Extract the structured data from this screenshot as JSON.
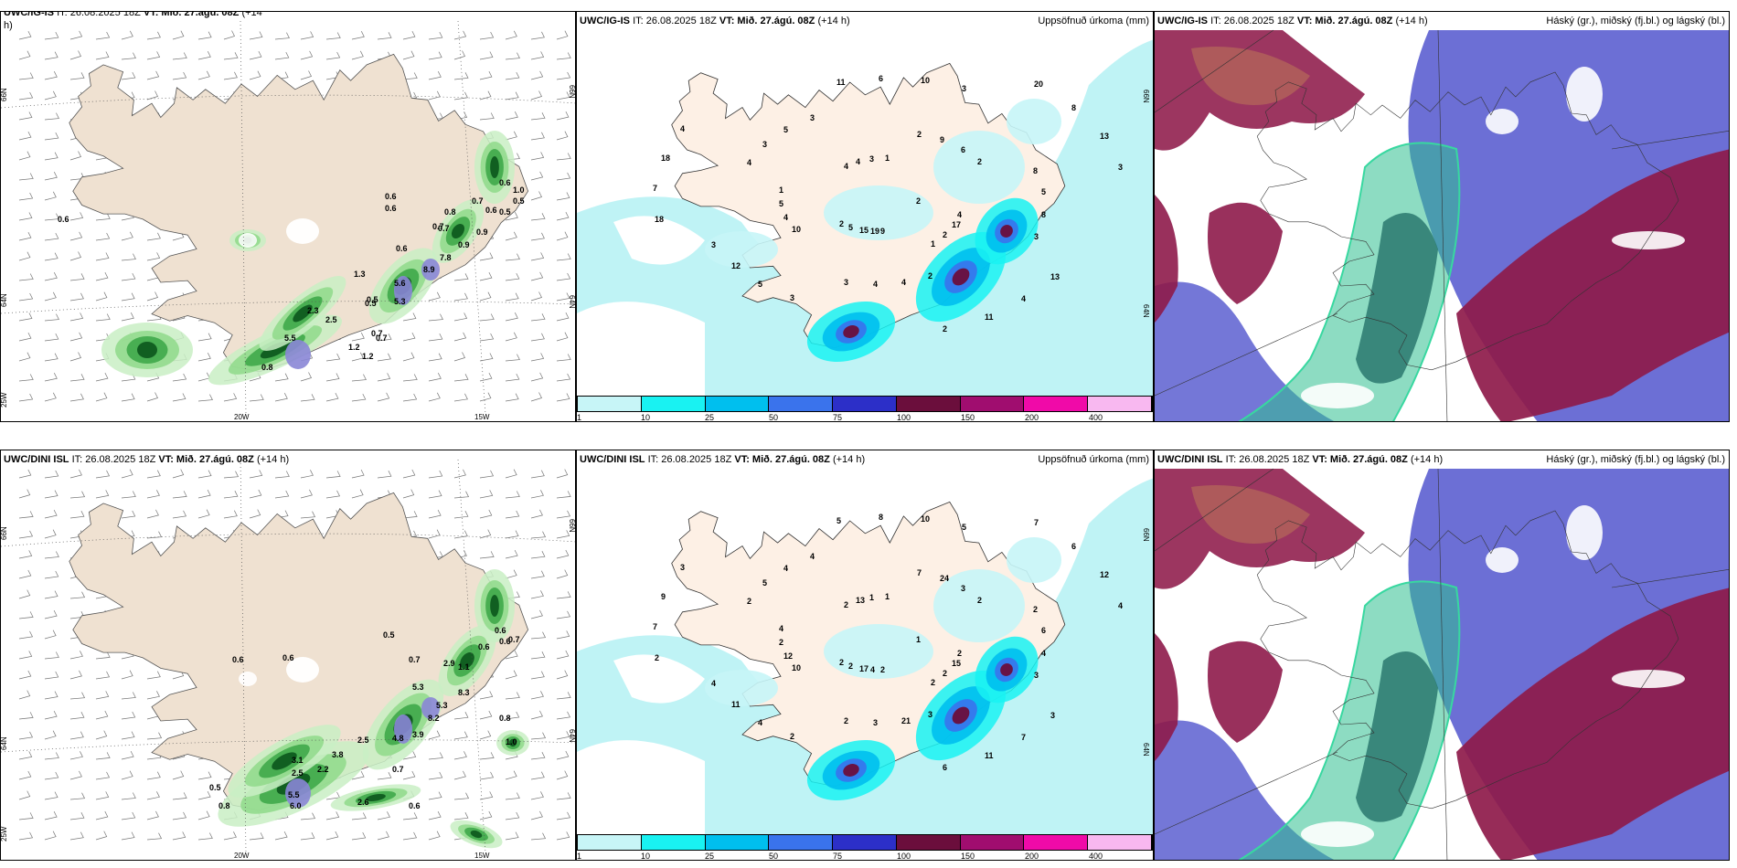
{
  "panels": {
    "top_left": {
      "model": "UWC/IG-IS",
      "it_label": "IT: 26.08.2025 18Z",
      "vt_label": "VT: Mið. 27.ágú. 08Z",
      "lead": "(+14",
      "lead_extra": "h)"
    },
    "top_mid": {
      "model": "UWC/IG-IS",
      "it_label": "IT: 26.08.2025 18Z",
      "vt_label": "VT: Mið. 27.ágú. 08Z",
      "lead": "(+14 h)",
      "right_title": "Uppsöfnuð úrkoma (mm)"
    },
    "top_right": {
      "model": "UWC/IG-IS",
      "it_label": "IT: 26.08.2025 18Z",
      "vt_label": "VT: Mið. 27.ágú. 08Z",
      "lead": "(+14 h)",
      "right_title": "Háský (gr.), miðský (fj.bl.) og lágský (bl.)"
    },
    "bottom_left": {
      "model": "UWC/DINI ISL",
      "it_label": "IT: 26.08.2025 18Z",
      "vt_label": "VT: Mið. 27.ágú. 08Z",
      "lead": "(+14 h)"
    },
    "bottom_mid": {
      "model": "UWC/DINI ISL",
      "it_label": "IT: 26.08.2025 18Z",
      "vt_label": "VT: Mið. 27.ágú. 08Z",
      "lead": "(+14 h)",
      "right_title": "Uppsöfnuð úrkoma (mm)"
    },
    "bottom_right": {
      "model": "UWC/DINI ISL",
      "it_label": "IT: 26.08.2025 18Z",
      "vt_label": "VT: Mið. 27.ágú. 08Z",
      "lead": "(+14 h)",
      "right_title": "Háský (gr.), miðský (fj.bl.) og lágský (bl.)"
    }
  },
  "axes": {
    "lat_66": "66N",
    "lat_64": "64N",
    "lon_25": "25W",
    "lon_20": "20W",
    "lon_15": "15W"
  },
  "colorbar": {
    "colors": [
      "#c7f5f7",
      "#19f2f2",
      "#00bfee",
      "#3a73ec",
      "#2c2fc8",
      "#6b0e3c",
      "#a00d6f",
      "#f00aa8",
      "#f8b8f0"
    ],
    "labels": [
      "1",
      "10",
      "25",
      "50",
      "75",
      "100",
      "150",
      "200",
      "400"
    ]
  },
  "top_left_values": [
    "0.6",
    "0.6",
    "0.6",
    "0.7",
    "0.6",
    "0.5",
    "0.7",
    "0.9",
    "0.8",
    "0.9",
    "1.3",
    "7.8",
    "8.9",
    "5.6",
    "5.3",
    "0.5",
    "0.7",
    "2.3",
    "2.5",
    "5.5",
    "0.8",
    "0.7",
    "1.2",
    "1.2",
    "0.6",
    "0.5",
    "1.0",
    "0.6",
    "0.7",
    "0.5"
  ],
  "bottom_left_values": [
    "0.6",
    "0.6",
    "0.5",
    "0.7",
    "2.9",
    "0.6",
    "0.6",
    "0.6",
    "0.7",
    "1.1",
    "5.3",
    "8.2",
    "5.3",
    "8.3",
    "4.8",
    "3.9",
    "2.5",
    "3.8",
    "3.1",
    "2.5",
    "2.2",
    "5.5",
    "6.0",
    "0.5",
    "0.8",
    "0.7",
    "2.6",
    "0.6",
    "0.8",
    "1.0"
  ],
  "top_mid_values": [
    "2",
    "2",
    "1",
    "1",
    "1",
    "2",
    "3",
    "3",
    "3",
    "3",
    "3",
    "2",
    "4",
    "3",
    "5",
    "3",
    "2",
    "5",
    "6",
    "4",
    "5",
    "8",
    "12",
    "10",
    "11",
    "18",
    "13",
    "15",
    "4",
    "17",
    "4",
    "9",
    "4",
    "3",
    "5",
    "5",
    "6",
    "4",
    "7",
    "8",
    "19",
    "4",
    "4",
    "10",
    "2",
    "2",
    "4",
    "8",
    "3",
    "11",
    "13",
    "18",
    "20",
    "9"
  ],
  "bottom_mid_values": [
    "1",
    "2",
    "1",
    "2",
    "4",
    "2",
    "2",
    "4",
    "3",
    "4",
    "5",
    "6",
    "3",
    "4",
    "2",
    "1",
    "2",
    "2",
    "3",
    "3",
    "4",
    "4",
    "11",
    "10",
    "11",
    "9",
    "12",
    "17",
    "13",
    "15",
    "12",
    "24",
    "21",
    "5",
    "6",
    "4",
    "8",
    "7",
    "7",
    "6",
    "4",
    "2",
    "2",
    "10",
    "7",
    "3",
    "2",
    "2",
    "2",
    "5",
    "3",
    "2",
    "7",
    "2"
  ]
}
